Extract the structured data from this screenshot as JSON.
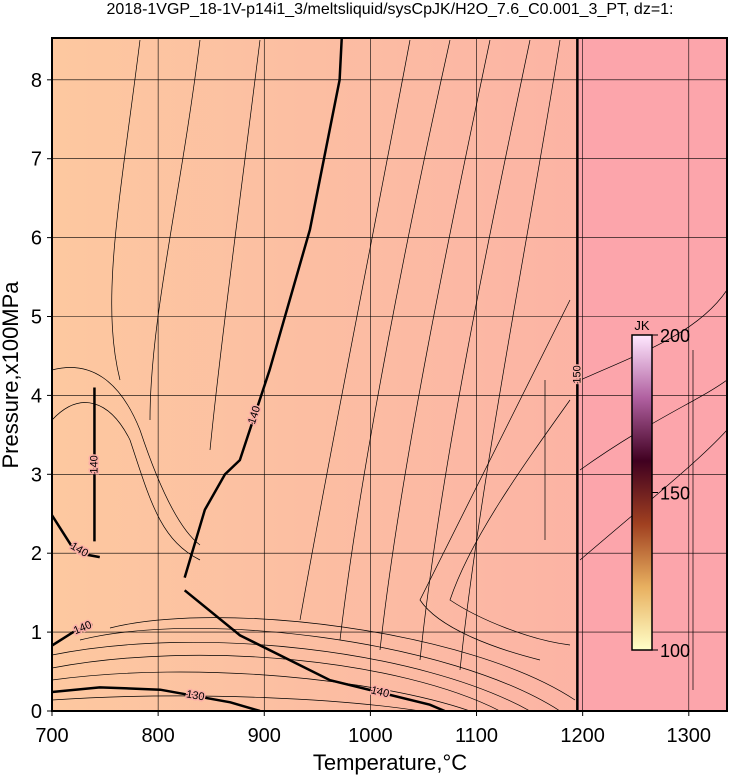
{
  "chart_data": {
    "type": "contour",
    "title": "2018-1VGP_18-1V-p14i1_3/meltsliquid/sysCpJK/H2O_7.6_C0.001_3_PT, dz=1:",
    "xlabel": "Temperature,°C",
    "ylabel": "Pressure,x100MPa",
    "xlim": [
      700,
      1336
    ],
    "ylim": [
      0,
      8.53
    ],
    "xticks": [
      700,
      800,
      900,
      1000,
      1100,
      1200,
      1300
    ],
    "yticks": [
      0,
      1,
      2,
      3,
      4,
      5,
      6,
      7,
      8
    ],
    "grid": true,
    "fill_colors": [
      "#fdc8a0",
      "#fbaea6",
      "#fca5ab"
    ],
    "contours": [
      {
        "level": 140,
        "x": [
          700,
          718,
          733,
          745
        ],
        "y": [
          2.48,
          2.1,
          1.98,
          1.95
        ]
      },
      {
        "level": 140,
        "x": [
          700,
          720,
          738
        ],
        "y": [
          0.83,
          1.0,
          1.1
        ]
      },
      {
        "level": 140,
        "x": [
          740,
          740
        ],
        "y": [
          2.15,
          4.1
        ]
      },
      {
        "level": 140,
        "x": [
          825,
          844,
          863,
          877,
          905,
          943,
          971,
          973
        ],
        "y": [
          1.69,
          2.55,
          3.0,
          3.18,
          4.32,
          6.1,
          8.0,
          8.53
        ]
      },
      {
        "level": 140,
        "x": [
          825,
          877,
          962,
          1056,
          1070
        ],
        "y": [
          1.53,
          0.96,
          0.39,
          0.08,
          0
        ]
      },
      {
        "level": 130,
        "x": [
          700,
          745,
          802,
          868,
          896
        ],
        "y": [
          0.24,
          0.3,
          0.27,
          0.11,
          0
        ]
      },
      {
        "level": 150,
        "x": [
          1195,
          1195
        ],
        "y": [
          0,
          8.53
        ]
      }
    ],
    "colorbar": {
      "label": "JK",
      "lim": [
        100,
        200
      ],
      "ticks": [
        100,
        150,
        200
      ],
      "colors": [
        "#ffffc8",
        "#e8b060",
        "#a04020",
        "#400020",
        "#b060a0",
        "#ffe8ff"
      ]
    }
  }
}
